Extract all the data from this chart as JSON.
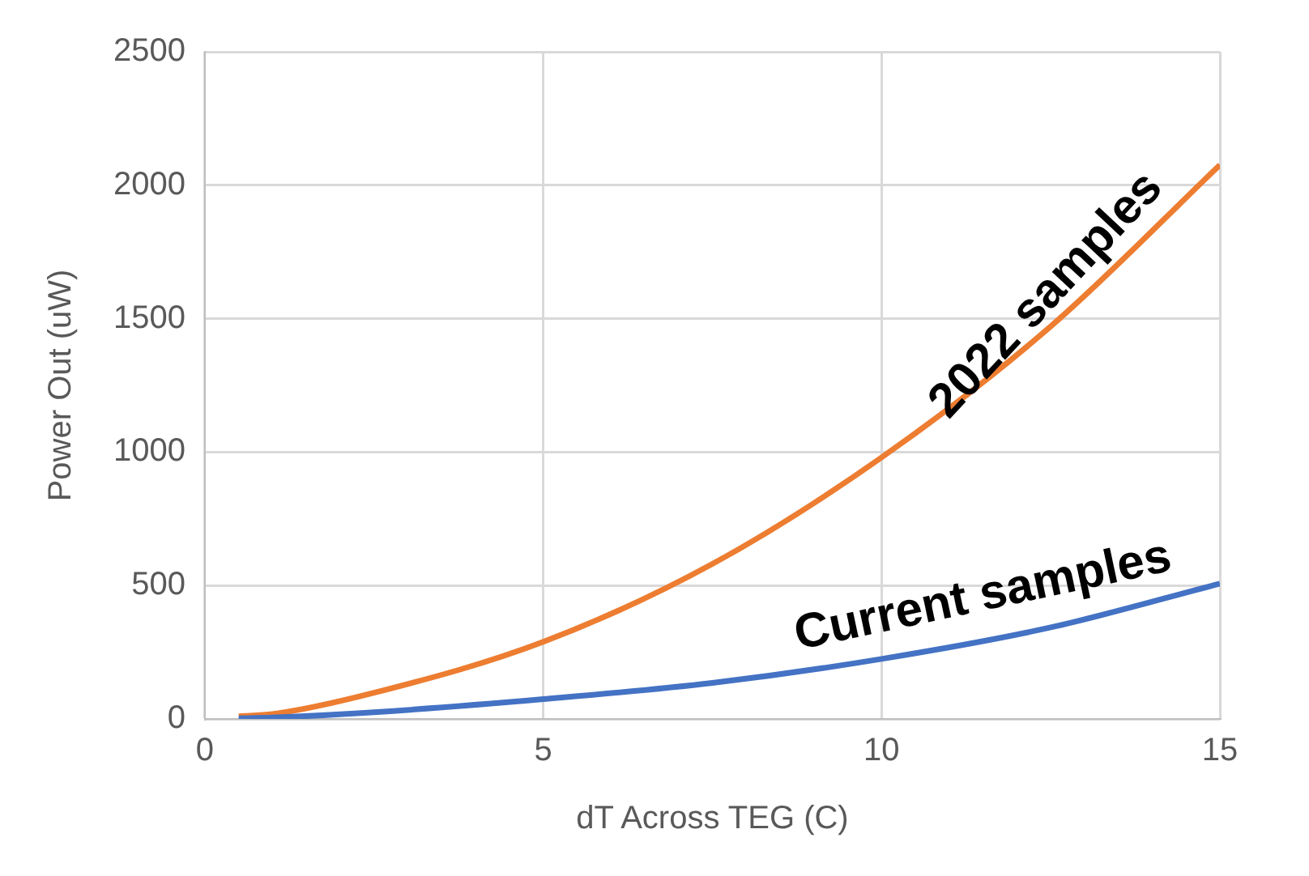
{
  "chart_data": {
    "type": "line",
    "xlabel": "dT Across TEG (C)",
    "ylabel": "Power Out (uW)",
    "x": [
      0.5,
      1,
      2.5,
      5,
      7.5,
      10,
      12.5,
      15
    ],
    "series": [
      {
        "name": "2022 samples",
        "color": "#ed7d31",
        "values": [
          10,
          18,
          98,
          289,
          581,
          980,
          1471,
          2076
        ]
      },
      {
        "name": "Current samples",
        "color": "#4472c4",
        "values": [
          2,
          5,
          25,
          74,
          135,
          225,
          343,
          507
        ]
      }
    ],
    "xlim": [
      0,
      15
    ],
    "xticks": [
      0,
      5,
      10,
      15
    ],
    "ylim": [
      0,
      2500
    ],
    "yticks": [
      0,
      500,
      1000,
      1500,
      2000,
      2500
    ],
    "grid": true,
    "legend": false,
    "marker": "none",
    "line_style": "solid"
  }
}
